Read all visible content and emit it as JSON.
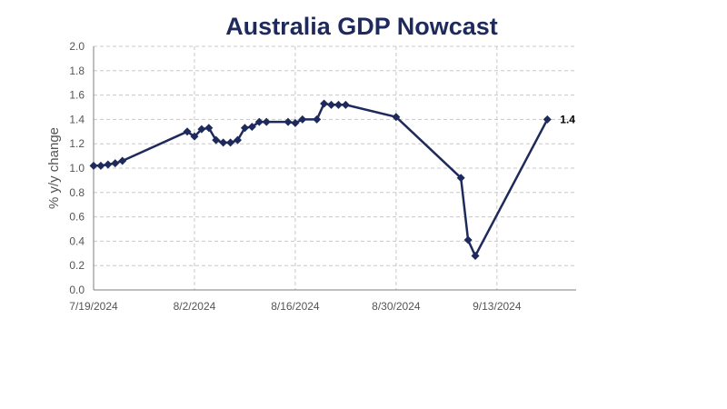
{
  "chart_data": {
    "type": "line",
    "title": "Australia GDP Nowcast",
    "xlabel": "",
    "ylabel": "% y/y change",
    "ylim": [
      0.0,
      2.0
    ],
    "yticks": [
      "0.0",
      "0.2",
      "0.4",
      "0.6",
      "0.8",
      "1.0",
      "1.2",
      "1.4",
      "1.6",
      "1.8",
      "2.0"
    ],
    "xlim": [
      "2024-07-19",
      "2024-09-24"
    ],
    "xticks": [
      {
        "date": "2024-07-19",
        "label": "7/19/2024"
      },
      {
        "date": "2024-08-02",
        "label": "8/2/2024"
      },
      {
        "date": "2024-08-16",
        "label": "8/16/2024"
      },
      {
        "date": "2024-08-30",
        "label": "8/30/2024"
      },
      {
        "date": "2024-09-13",
        "label": "9/13/2024"
      }
    ],
    "grid": true,
    "color": "#1f2a5c",
    "marker": "diamond",
    "end_label": "1.4",
    "points": [
      {
        "x": "2024-07-19",
        "y": 1.02
      },
      {
        "x": "2024-07-20",
        "y": 1.02
      },
      {
        "x": "2024-07-21",
        "y": 1.03
      },
      {
        "x": "2024-07-22",
        "y": 1.04
      },
      {
        "x": "2024-07-23",
        "y": 1.06
      },
      {
        "x": "2024-08-01",
        "y": 1.3
      },
      {
        "x": "2024-08-02",
        "y": 1.26
      },
      {
        "x": "2024-08-03",
        "y": 1.32
      },
      {
        "x": "2024-08-04",
        "y": 1.33
      },
      {
        "x": "2024-08-05",
        "y": 1.23
      },
      {
        "x": "2024-08-06",
        "y": 1.21
      },
      {
        "x": "2024-08-07",
        "y": 1.21
      },
      {
        "x": "2024-08-08",
        "y": 1.23
      },
      {
        "x": "2024-08-09",
        "y": 1.33
      },
      {
        "x": "2024-08-10",
        "y": 1.34
      },
      {
        "x": "2024-08-11",
        "y": 1.38
      },
      {
        "x": "2024-08-12",
        "y": 1.38
      },
      {
        "x": "2024-08-15",
        "y": 1.38
      },
      {
        "x": "2024-08-16",
        "y": 1.37
      },
      {
        "x": "2024-08-17",
        "y": 1.4
      },
      {
        "x": "2024-08-19",
        "y": 1.4
      },
      {
        "x": "2024-08-20",
        "y": 1.53
      },
      {
        "x": "2024-08-21",
        "y": 1.52
      },
      {
        "x": "2024-08-22",
        "y": 1.52
      },
      {
        "x": "2024-08-23",
        "y": 1.52
      },
      {
        "x": "2024-08-30",
        "y": 1.42
      },
      {
        "x": "2024-09-08",
        "y": 0.92
      },
      {
        "x": "2024-09-09",
        "y": 0.41
      },
      {
        "x": "2024-09-10",
        "y": 0.28
      },
      {
        "x": "2024-09-20",
        "y": 1.4
      }
    ]
  }
}
